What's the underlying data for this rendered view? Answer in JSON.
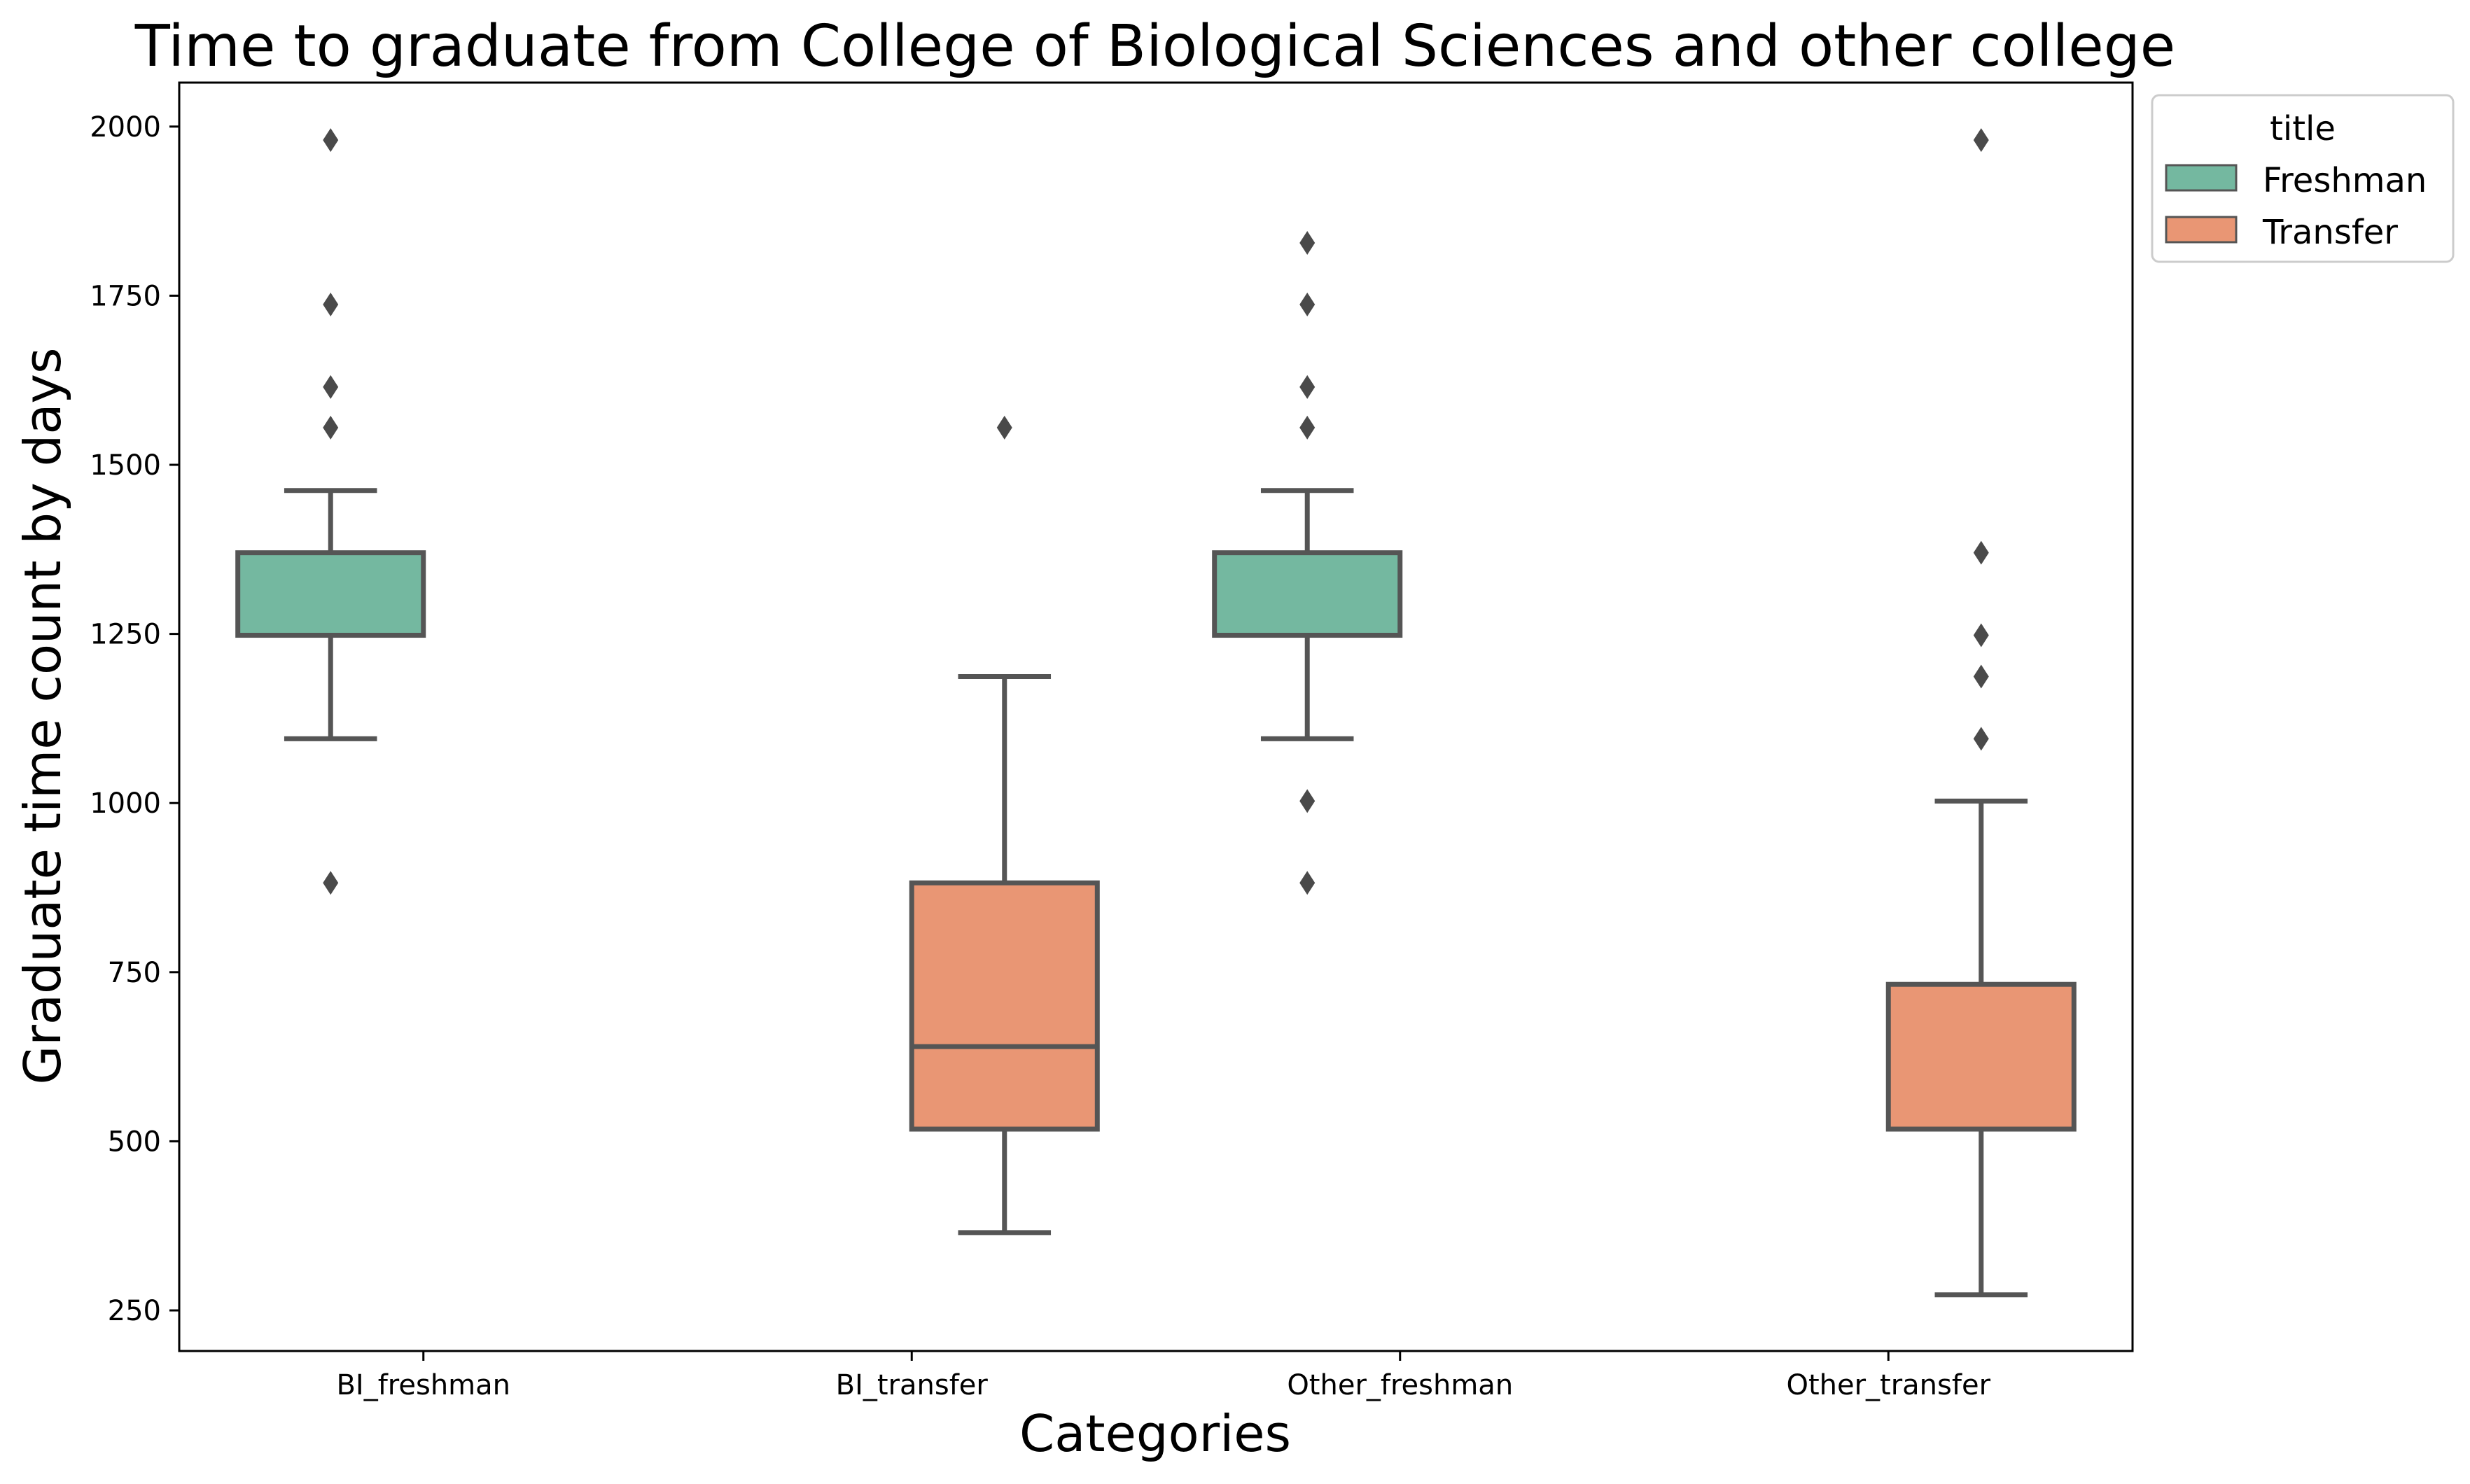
{
  "chart_data": {
    "type": "box",
    "title": "Time to graduate from College of Biological Sciences and other college",
    "xlabel": "Categories",
    "ylabel": "Graduate time count by days",
    "ylim": [
      190,
      2065
    ],
    "yticks": [
      250,
      500,
      750,
      1000,
      1250,
      1500,
      1750,
      2000
    ],
    "categories": [
      "BI_freshman",
      "BI_transfer",
      "Other_freshman",
      "Other_transfer"
    ],
    "legend": {
      "title": "title",
      "position": "outside top-right",
      "entries": [
        {
          "label": "Freshman",
          "color": "#74b8a0"
        },
        {
          "label": "Transfer",
          "color": "#e99674"
        }
      ]
    },
    "series": [
      {
        "name": "Freshman",
        "color": "#74b8a0",
        "boxes": [
          {
            "category": "BI_freshman",
            "whisker_low": 1095,
            "q1": 1248,
            "median": 1248,
            "q3": 1370,
            "whisker_high": 1462,
            "outliers": [
              882,
              1555,
              1615,
              1737,
              1980
            ]
          },
          {
            "category": "Other_freshman",
            "whisker_low": 1095,
            "q1": 1248,
            "median": 1248,
            "q3": 1370,
            "whisker_high": 1462,
            "outliers": [
              882,
              1003,
              1555,
              1615,
              1737,
              1828
            ]
          }
        ]
      },
      {
        "name": "Transfer",
        "color": "#e99674",
        "boxes": [
          {
            "category": "BI_transfer",
            "whisker_low": 365,
            "q1": 518,
            "median": 640,
            "q3": 882,
            "whisker_high": 1187,
            "outliers": [
              1555
            ]
          },
          {
            "category": "Other_transfer",
            "whisker_low": 273,
            "q1": 518,
            "median": 518,
            "q3": 732,
            "whisker_high": 1003,
            "outliers": [
              1095,
              1187,
              1248,
              1370,
              1980
            ]
          }
        ]
      }
    ],
    "grid": false,
    "colors": {
      "line": "#555555",
      "axis": "#000000"
    }
  }
}
